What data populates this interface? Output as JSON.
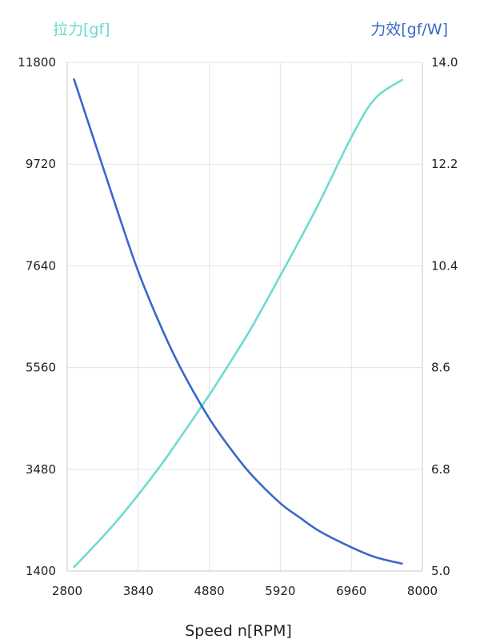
{
  "chart_data": {
    "type": "line",
    "title": "",
    "xlabel": "Speed n[RPM]",
    "ylabel_left": "拉力[gf]",
    "ylabel_right": "力效[gf/W]",
    "xlim": [
      2800,
      8000
    ],
    "ylim_left": [
      1400,
      11800
    ],
    "ylim_right": [
      5.0,
      14.0
    ],
    "x_ticks": [
      "2800",
      "3840",
      "4880",
      "5920",
      "6960",
      "8000"
    ],
    "y_left_ticks": [
      "1400",
      "3480",
      "5560",
      "7640",
      "9720",
      "11800"
    ],
    "y_right_ticks": [
      "5.0",
      "6.8",
      "8.6",
      "10.4",
      "12.2",
      "14.0"
    ],
    "grid": true,
    "series": [
      {
        "name": "拉力[gf]",
        "axis": "left",
        "color": "#6edbd0",
        "x": [
          2900,
          3200,
          3500,
          3840,
          4200,
          4500,
          4880,
          5200,
          5500,
          5920,
          6200,
          6500,
          6960,
          7300,
          7700
        ],
        "y": [
          1480,
          1920,
          2380,
          2960,
          3620,
          4220,
          5000,
          5700,
          6380,
          7440,
          8160,
          8960,
          10270,
          11050,
          11440
        ]
      },
      {
        "name": "力效[gf/W]",
        "axis": "right",
        "color": "#3a68c8",
        "x": [
          2900,
          3200,
          3500,
          3840,
          4200,
          4500,
          4880,
          5200,
          5500,
          5920,
          6200,
          6500,
          6960,
          7300,
          7700
        ],
        "y": [
          13.7,
          12.6,
          11.5,
          10.3,
          9.25,
          8.5,
          7.7,
          7.15,
          6.7,
          6.2,
          5.95,
          5.7,
          5.42,
          5.25,
          5.13
        ]
      }
    ]
  }
}
